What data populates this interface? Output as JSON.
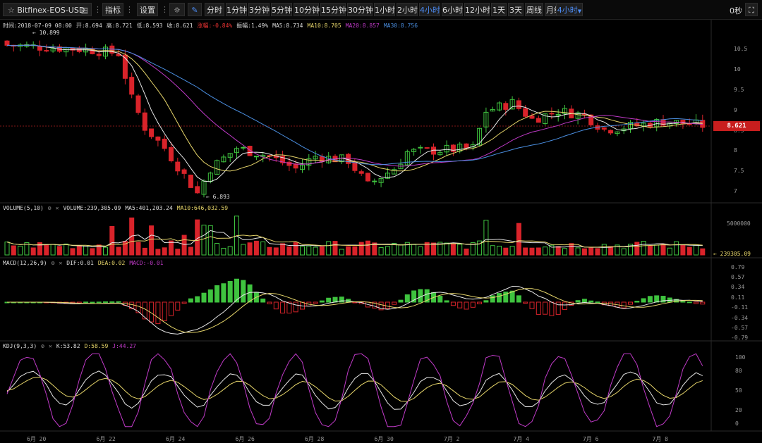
{
  "toolbar": {
    "symbol": "Bitfinex-EOS-USD",
    "indicator": "指标",
    "settings": "设置",
    "intervals": [
      "分时",
      "1分钟",
      "3分钟",
      "5分钟",
      "10分钟",
      "15分钟",
      "30分钟",
      "1小时",
      "2小时",
      "4小时",
      "6小时",
      "12小时",
      "1天",
      "3天",
      "周线",
      "月线"
    ],
    "selected_interval": "4小时",
    "interval_dropdown": "4小时",
    "timer": "0秒"
  },
  "info": {
    "time": "时间:2018-07-09 08:00",
    "open": "开:8.694",
    "high": "高:8.721",
    "low": "低:8.593",
    "close": "收:8.621",
    "change": "涨幅:-0.84%",
    "amplitude": "振幅:1.49%",
    "ma5": "MA5:8.734",
    "ma10": "MA10:8.705",
    "ma20": "MA20:8.857",
    "ma30": "MA30:8.756"
  },
  "price_axis": [
    "10.5",
    "10",
    "9.5",
    "9",
    "8.5",
    "8",
    "7.5",
    "7"
  ],
  "current_price": "8.621",
  "high_marker": "← 10.899",
  "low_marker": "← 6.893",
  "volume": {
    "title": "VOLUME(5,10)",
    "value": "VOLUME:239,305.09",
    "ma5": "MA5:401,203.24",
    "ma10": "MA10:646,032.59",
    "axis": [
      "5000000"
    ],
    "current": "← 239305.09"
  },
  "macd": {
    "title": "MACD(12,26,9)",
    "dif": "DIF:0.01",
    "dea": "DEA:0.02",
    "macd": "MACD:-0.01",
    "axis": [
      "0.79",
      "0.57",
      "0.34",
      "0.11",
      "-0.11",
      "-0.34",
      "-0.57",
      "-0.79"
    ]
  },
  "kdj": {
    "title": "KDJ(9,3,3)",
    "k": "K:53.82",
    "d": "D:58.59",
    "j": "J:44.27",
    "axis": [
      "100",
      "80",
      "50",
      "20",
      "0"
    ]
  },
  "x_axis": [
    "6月 20",
    "6月 22",
    "6月 24",
    "6月 26",
    "6月 28",
    "6月 30",
    "7月 2",
    "7月 4",
    "7月 6",
    "7月 8"
  ],
  "colors": {
    "up": "#3fc33f",
    "down": "#d9232a",
    "ma5": "#e8e8e8",
    "ma10": "#e6d56a",
    "ma20": "#c03ac8",
    "ma30": "#4a8ee0",
    "accent": "#4c8cf5"
  }
}
